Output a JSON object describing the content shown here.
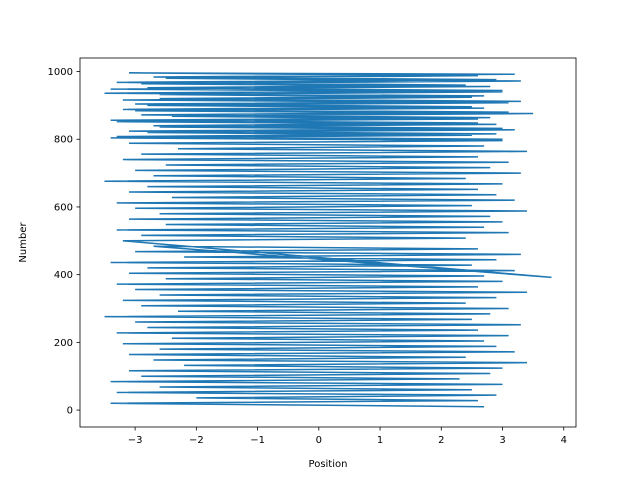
{
  "chart_data": {
    "type": "line",
    "xlabel": "Position",
    "ylabel": "Number",
    "xlim": [
      -3.9,
      4.2
    ],
    "ylim": [
      -50,
      1040
    ],
    "xticks": [
      -3,
      -2,
      -1,
      0,
      1,
      2,
      3,
      4
    ],
    "yticks": [
      0,
      200,
      400,
      600,
      800,
      1000
    ],
    "xtick_labels": [
      "−3",
      "−2",
      "−1",
      "0",
      "1",
      "2",
      "3",
      "4"
    ],
    "ytick_labels": [
      "0",
      "200",
      "400",
      "600",
      "800",
      "1000"
    ],
    "grid": false,
    "legend": "none",
    "colors": {
      "series": "#1f77b4",
      "axes": "#000000",
      "background": "#ffffff"
    },
    "series": [
      {
        "points_description_note": "",
        "x": [
          2.7,
          -3.4,
          2.6,
          -2.0,
          2.9,
          -3.3,
          2.5,
          -2.6,
          3.0,
          -3.4,
          2.3,
          -2.9,
          2.8,
          -3.1,
          3.0,
          -2.2,
          3.4,
          -2.7,
          2.4,
          -3.1,
          3.2,
          -2.6,
          2.9,
          -3.2,
          2.7,
          -2.4,
          3.1,
          -3.3,
          2.6,
          -2.8,
          3.3,
          -3.0,
          2.5,
          -3.5,
          2.8,
          -2.3,
          3.1,
          -2.9,
          2.4,
          -3.2,
          2.9,
          -2.6,
          3.4,
          -3.0,
          2.6,
          -3.3,
          3.0,
          -2.5,
          2.7,
          -3.1,
          3.2,
          -2.8,
          2.5,
          -3.4,
          2.9,
          -2.2,
          3.3,
          -3.0,
          2.6,
          -2.7,
          3.8,
          -3.2,
          2.4,
          -2.9,
          3.1,
          -3.3,
          2.7,
          -2.5,
          3.0,
          -3.1,
          2.8,
          -2.6,
          3.4,
          -3.0,
          2.5,
          -3.3,
          3.2,
          -2.4,
          2.9,
          -3.1,
          2.6,
          -2.8,
          3.0,
          -3.5,
          2.4,
          -2.7,
          3.3,
          -3.0,
          2.8,
          -2.5,
          3.1,
          -3.2,
          2.6,
          -2.9,
          3.4,
          -2.3,
          2.7,
          -3.1,
          3.0,
          -3.4,
          2.5,
          -2.8,
          3.2,
          -2.6,
          2.9,
          -3.3,
          2.6,
          -2.4,
          3.5,
          -3.0,
          2.7,
          -2.8,
          3.1,
          -3.2,
          2.5,
          -2.6,
          3.0,
          -3.4,
          2.8,
          -2.9,
          3.3,
          -2.5,
          2.6,
          -3.1,
          3.2,
          -2.7,
          2.9,
          -3.3,
          2.4,
          -2.8,
          3.0,
          -3.5,
          2.7,
          -2.6,
          3.3,
          -3.0,
          2.5,
          -3.2,
          3.1,
          -2.9,
          2.8,
          -3.4,
          2.6,
          -2.7,
          3.0,
          -3.1,
          2.9,
          -3.3,
          3.0
        ],
        "y": [
          10,
          20,
          28,
          36,
          44,
          52,
          60,
          68,
          76,
          84,
          92,
          100,
          108,
          116,
          124,
          132,
          140,
          148,
          156,
          164,
          172,
          180,
          188,
          196,
          204,
          212,
          220,
          228,
          236,
          244,
          252,
          260,
          268,
          276,
          284,
          292,
          300,
          308,
          316,
          324,
          332,
          340,
          348,
          356,
          364,
          372,
          380,
          388,
          396,
          404,
          412,
          420,
          428,
          436,
          444,
          452,
          460,
          468,
          476,
          484,
          392,
          500,
          508,
          516,
          524,
          532,
          540,
          548,
          556,
          564,
          572,
          580,
          588,
          596,
          604,
          612,
          620,
          628,
          636,
          644,
          652,
          660,
          668,
          676,
          684,
          692,
          700,
          708,
          716,
          724,
          732,
          740,
          748,
          756,
          764,
          772,
          780,
          788,
          796,
          804,
          812,
          820,
          828,
          836,
          844,
          852,
          860,
          868,
          876,
          884,
          892,
          900,
          908,
          916,
          924,
          932,
          940,
          948,
          956,
          964,
          972,
          980,
          988,
          996,
          992,
          984,
          976,
          968,
          960,
          952,
          944,
          936,
          928,
          920,
          912,
          904,
          896,
          888,
          880,
          872,
          864,
          856,
          848,
          840,
          832,
          824,
          816,
          808,
          800
        ]
      }
    ]
  }
}
